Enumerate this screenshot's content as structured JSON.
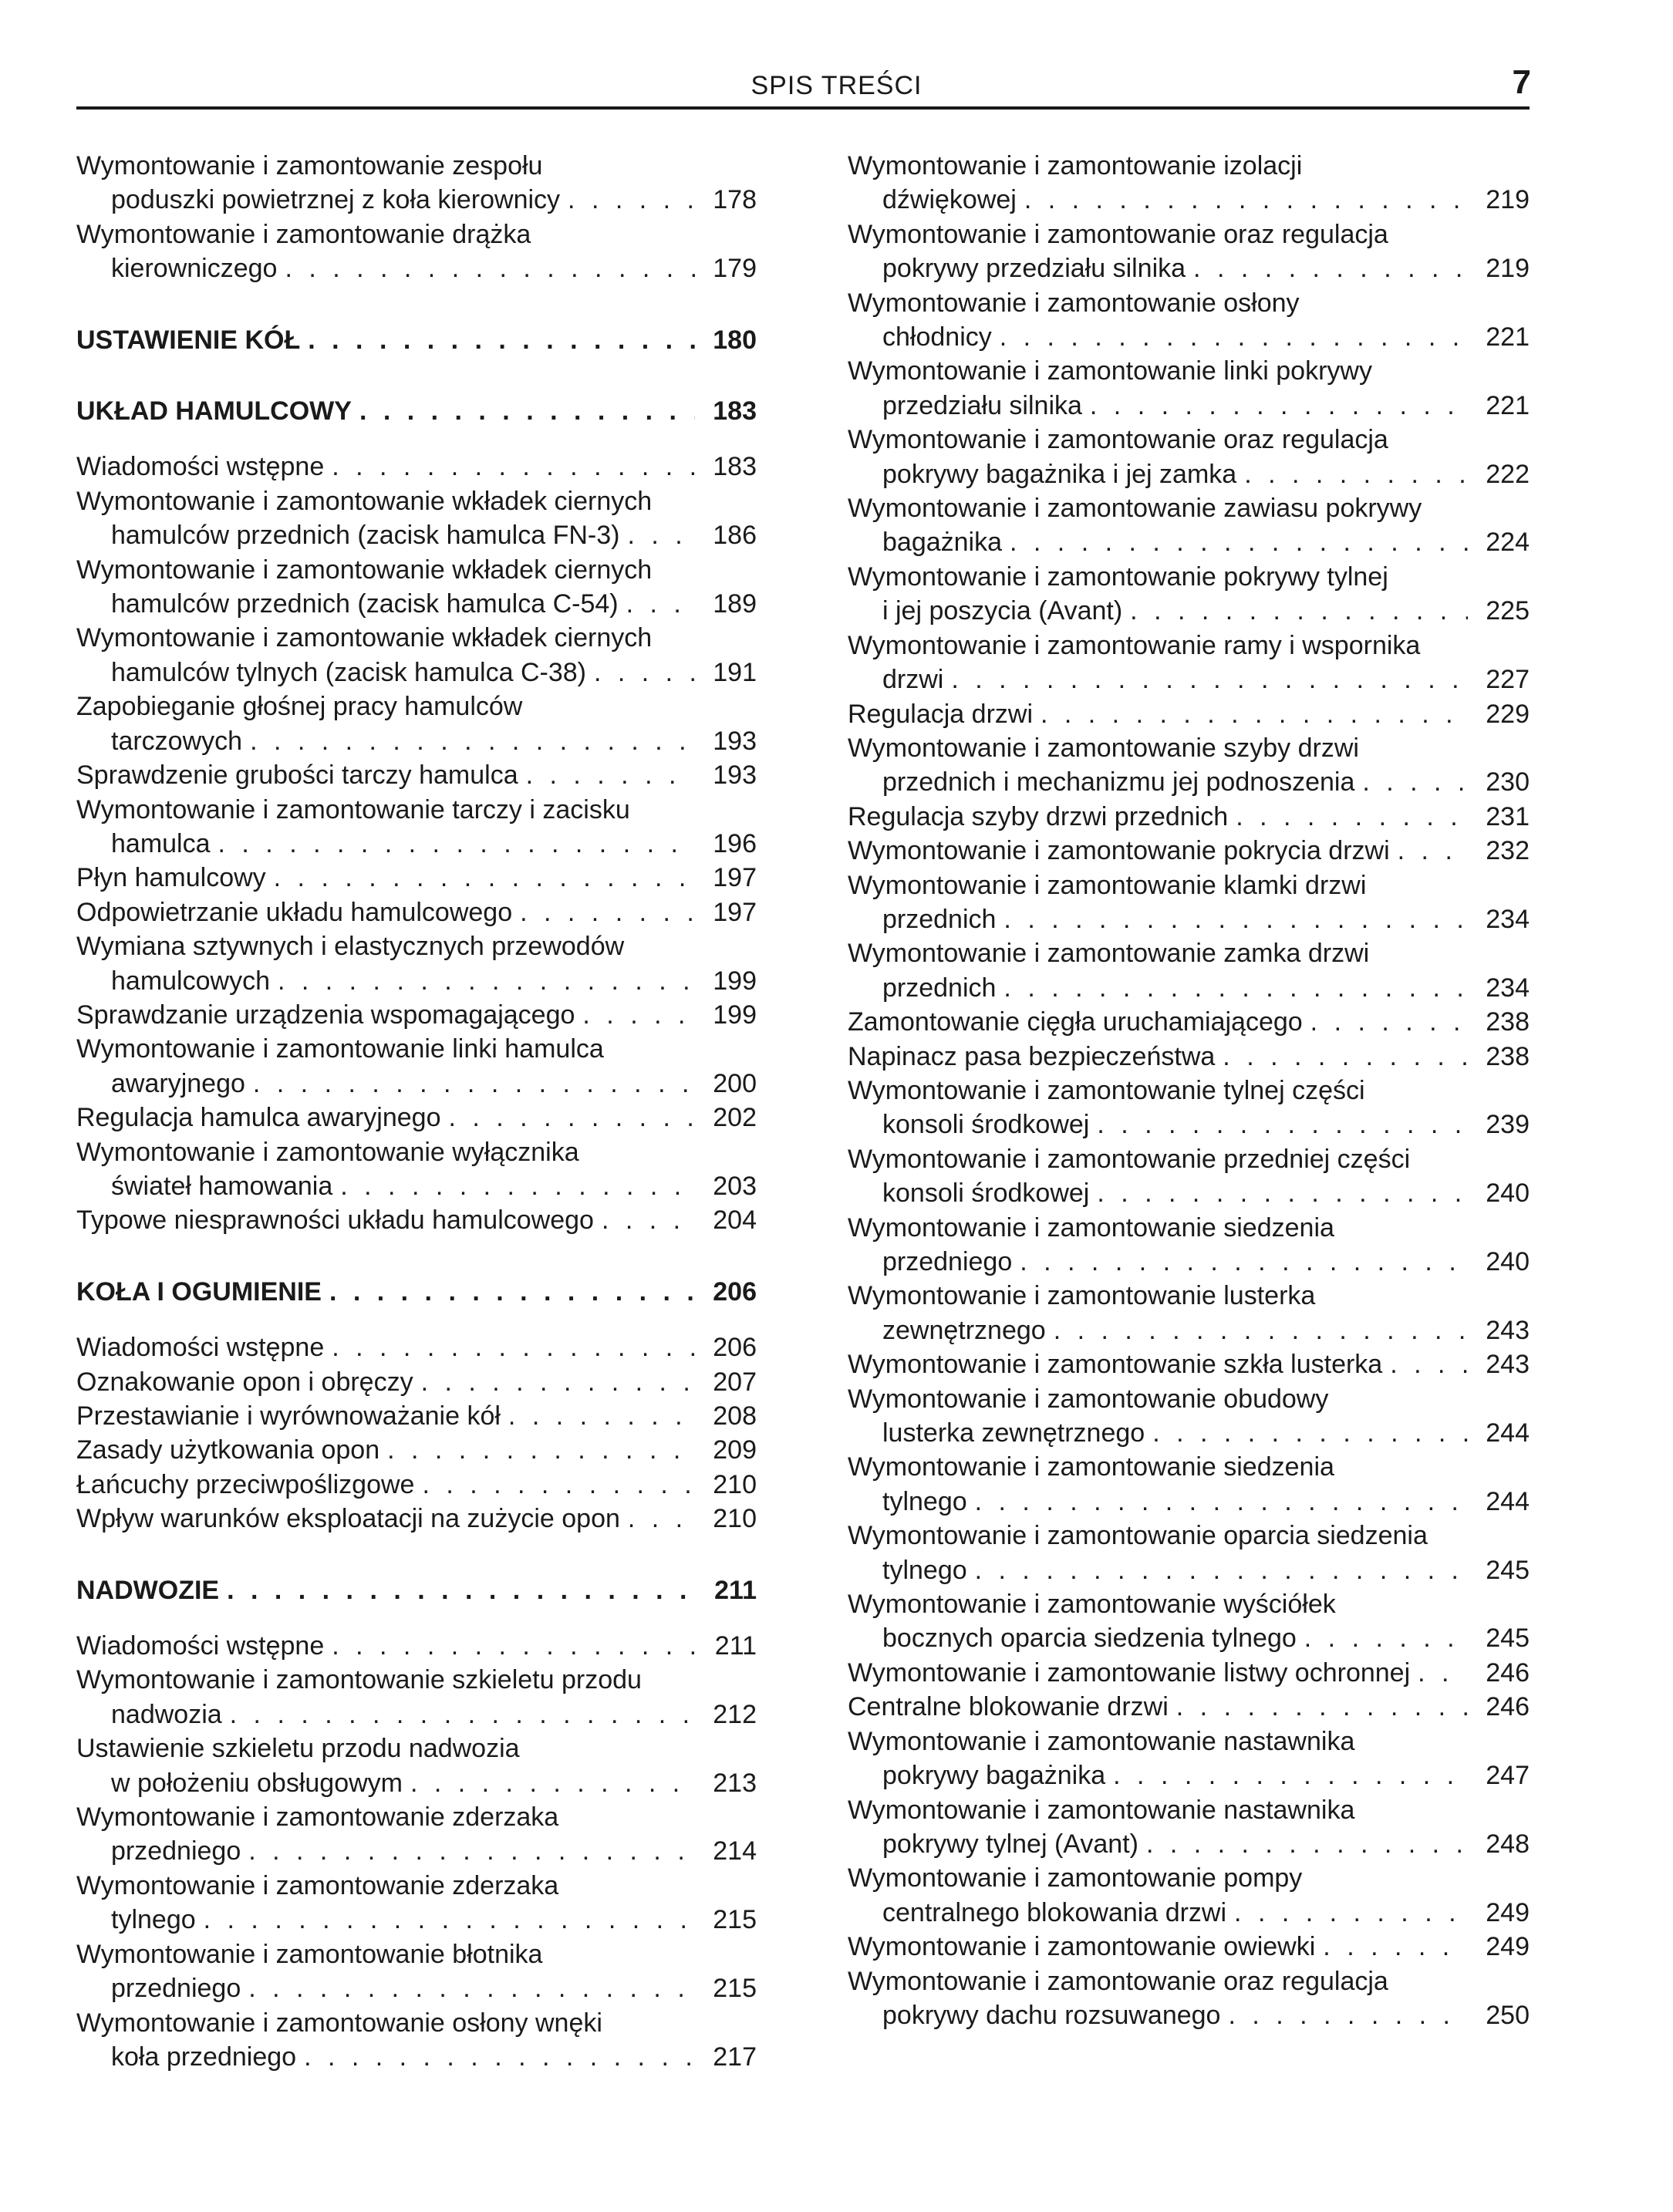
{
  "header": {
    "title": "SPIS TREŚCI",
    "page_number": "7"
  },
  "left": [
    {
      "lines": [
        "Wymontowanie i zamontowanie zespołu",
        "poduszki powietrznej z koła kierownicy"
      ],
      "page": "178"
    },
    {
      "lines": [
        "Wymontowanie i zamontowanie drążka",
        "kierowniczego"
      ],
      "page": "179"
    },
    {
      "heading": true,
      "lines": [
        "USTAWIENIE KÓŁ"
      ],
      "page": "180"
    },
    {
      "heading": true,
      "lines": [
        "UKŁAD HAMULCOWY"
      ],
      "page": "183"
    },
    {
      "lines": [
        "Wiadomości wstępne"
      ],
      "page": "183"
    },
    {
      "lines": [
        "Wymontowanie i zamontowanie wkładek ciernych",
        "hamulców przednich (zacisk hamulca FN-3)"
      ],
      "page": "186"
    },
    {
      "lines": [
        "Wymontowanie i zamontowanie wkładek ciernych",
        "hamulców przednich (zacisk hamulca C-54)"
      ],
      "page": "189"
    },
    {
      "lines": [
        "Wymontowanie i zamontowanie wkładek ciernych",
        "hamulców tylnych (zacisk hamulca C-38)"
      ],
      "page": "191"
    },
    {
      "lines": [
        "Zapobieganie głośnej pracy hamulców",
        "tarczowych"
      ],
      "page": "193"
    },
    {
      "lines": [
        "Sprawdzenie grubości tarczy hamulca"
      ],
      "page": "193"
    },
    {
      "lines": [
        "Wymontowanie i zamontowanie tarczy i zacisku",
        "hamulca"
      ],
      "page": "196"
    },
    {
      "lines": [
        "Płyn hamulcowy"
      ],
      "page": "197"
    },
    {
      "lines": [
        "Odpowietrzanie układu hamulcowego"
      ],
      "page": "197"
    },
    {
      "lines": [
        "Wymiana sztywnych i elastycznych przewodów",
        "hamulcowych"
      ],
      "page": "199"
    },
    {
      "lines": [
        "Sprawdzanie urządzenia wspomagającego"
      ],
      "page": "199"
    },
    {
      "lines": [
        "Wymontowanie i zamontowanie linki hamulca",
        "awaryjnego"
      ],
      "page": "200"
    },
    {
      "lines": [
        "Regulacja hamulca awaryjnego"
      ],
      "page": "202"
    },
    {
      "lines": [
        "Wymontowanie i zamontowanie wyłącznika",
        "świateł hamowania"
      ],
      "page": "203"
    },
    {
      "lines": [
        "Typowe niesprawności układu hamulcowego"
      ],
      "page": "204"
    },
    {
      "heading": true,
      "lines": [
        "KOŁA I OGUMIENIE"
      ],
      "page": "206"
    },
    {
      "lines": [
        "Wiadomości wstępne"
      ],
      "page": "206"
    },
    {
      "lines": [
        "Oznakowanie opon i obręczy"
      ],
      "page": "207"
    },
    {
      "lines": [
        "Przestawianie i wyrównoważanie kół"
      ],
      "page": "208"
    },
    {
      "lines": [
        "Zasady użytkowania opon"
      ],
      "page": "209"
    },
    {
      "lines": [
        "Łańcuchy przeciwpoślizgowe"
      ],
      "page": "210"
    },
    {
      "lines": [
        "Wpływ warunków eksploatacji na zużycie opon"
      ],
      "page": "210"
    },
    {
      "heading": true,
      "lines": [
        "NADWOZIE"
      ],
      "page": "211"
    },
    {
      "lines": [
        "Wiadomości wstępne"
      ],
      "page": "211"
    },
    {
      "lines": [
        "Wymontowanie i zamontowanie szkieletu przodu",
        "nadwozia"
      ],
      "page": "212"
    },
    {
      "lines": [
        "Ustawienie szkieletu przodu nadwozia",
        "w położeniu obsługowym"
      ],
      "page": "213"
    },
    {
      "lines": [
        "Wymontowanie i zamontowanie zderzaka",
        "przedniego"
      ],
      "page": "214"
    },
    {
      "lines": [
        "Wymontowanie i zamontowanie zderzaka",
        "tylnego"
      ],
      "page": "215"
    },
    {
      "lines": [
        "Wymontowanie i zamontowanie błotnika",
        "przedniego"
      ],
      "page": "215"
    },
    {
      "lines": [
        "Wymontowanie i zamontowanie osłony wnęki",
        "koła przedniego"
      ],
      "page": "217"
    }
  ],
  "right": [
    {
      "lines": [
        "Wymontowanie i zamontowanie izolacji",
        "dźwiękowej"
      ],
      "page": "219"
    },
    {
      "lines": [
        "Wymontowanie i zamontowanie oraz regulacja",
        "pokrywy przedziału silnika"
      ],
      "page": "219"
    },
    {
      "lines": [
        "Wymontowanie i zamontowanie osłony",
        "chłodnicy"
      ],
      "page": "221"
    },
    {
      "lines": [
        "Wymontowanie i zamontowanie linki pokrywy",
        "przedziału silnika"
      ],
      "page": "221"
    },
    {
      "lines": [
        "Wymontowanie i zamontowanie oraz regulacja",
        "pokrywy bagażnika i jej zamka"
      ],
      "page": "222"
    },
    {
      "lines": [
        "Wymontowanie i zamontowanie zawiasu pokrywy",
        "bagażnika"
      ],
      "page": "224"
    },
    {
      "lines": [
        "Wymontowanie i zamontowanie pokrywy tylnej",
        "i jej poszycia (Avant)"
      ],
      "page": "225"
    },
    {
      "lines": [
        "Wymontowanie i zamontowanie ramy i wspornika",
        "drzwi"
      ],
      "page": "227"
    },
    {
      "lines": [
        "Regulacja drzwi"
      ],
      "page": "229"
    },
    {
      "lines": [
        "Wymontowanie i zamontowanie szyby drzwi",
        "przednich i mechanizmu jej podnoszenia"
      ],
      "page": "230"
    },
    {
      "lines": [
        "Regulacja szyby drzwi przednich"
      ],
      "page": "231"
    },
    {
      "lines": [
        "Wymontowanie i zamontowanie pokrycia drzwi"
      ],
      "page": "232"
    },
    {
      "lines": [
        "Wymontowanie i zamontowanie klamki drzwi",
        "przednich"
      ],
      "page": "234"
    },
    {
      "lines": [
        "Wymontowanie i zamontowanie zamka drzwi",
        "przednich"
      ],
      "page": "234"
    },
    {
      "lines": [
        "Zamontowanie cięgła uruchamiającego"
      ],
      "page": "238"
    },
    {
      "lines": [
        "Napinacz pasa bezpieczeństwa"
      ],
      "page": "238"
    },
    {
      "lines": [
        "Wymontowanie i zamontowanie tylnej części",
        "konsoli środkowej"
      ],
      "page": "239"
    },
    {
      "lines": [
        "Wymontowanie i zamontowanie przedniej części",
        "konsoli środkowej"
      ],
      "page": "240"
    },
    {
      "lines": [
        "Wymontowanie i zamontowanie siedzenia",
        "przedniego"
      ],
      "page": "240"
    },
    {
      "lines": [
        "Wymontowanie i zamontowanie lusterka",
        "zewnętrznego"
      ],
      "page": "243"
    },
    {
      "lines": [
        "Wymontowanie i zamontowanie szkła lusterka"
      ],
      "page": "243"
    },
    {
      "lines": [
        "Wymontowanie i zamontowanie obudowy",
        "lusterka zewnętrznego"
      ],
      "page": "244"
    },
    {
      "lines": [
        "Wymontowanie i zamontowanie siedzenia",
        "tylnego"
      ],
      "page": "244"
    },
    {
      "lines": [
        "Wymontowanie i zamontowanie oparcia siedzenia",
        "tylnego"
      ],
      "page": "245"
    },
    {
      "lines": [
        "Wymontowanie i zamontowanie wyściółek",
        "bocznych oparcia siedzenia tylnego"
      ],
      "page": "245"
    },
    {
      "lines": [
        "Wymontowanie i zamontowanie listwy ochronnej"
      ],
      "page": "246"
    },
    {
      "lines": [
        "Centralne blokowanie drzwi"
      ],
      "page": "246"
    },
    {
      "lines": [
        "Wymontowanie i zamontowanie nastawnika",
        "pokrywy bagażnika"
      ],
      "page": "247"
    },
    {
      "lines": [
        "Wymontowanie i zamontowanie nastawnika",
        "pokrywy tylnej (Avant)"
      ],
      "page": "248"
    },
    {
      "lines": [
        "Wymontowanie i zamontowanie pompy",
        "centralnego blokowania drzwi"
      ],
      "page": "249"
    },
    {
      "lines": [
        "Wymontowanie i zamontowanie owiewki"
      ],
      "page": "249"
    },
    {
      "lines": [
        "Wymontowanie i zamontowanie oraz regulacja",
        "pokrywy dachu rozsuwanego"
      ],
      "page": "250"
    }
  ]
}
